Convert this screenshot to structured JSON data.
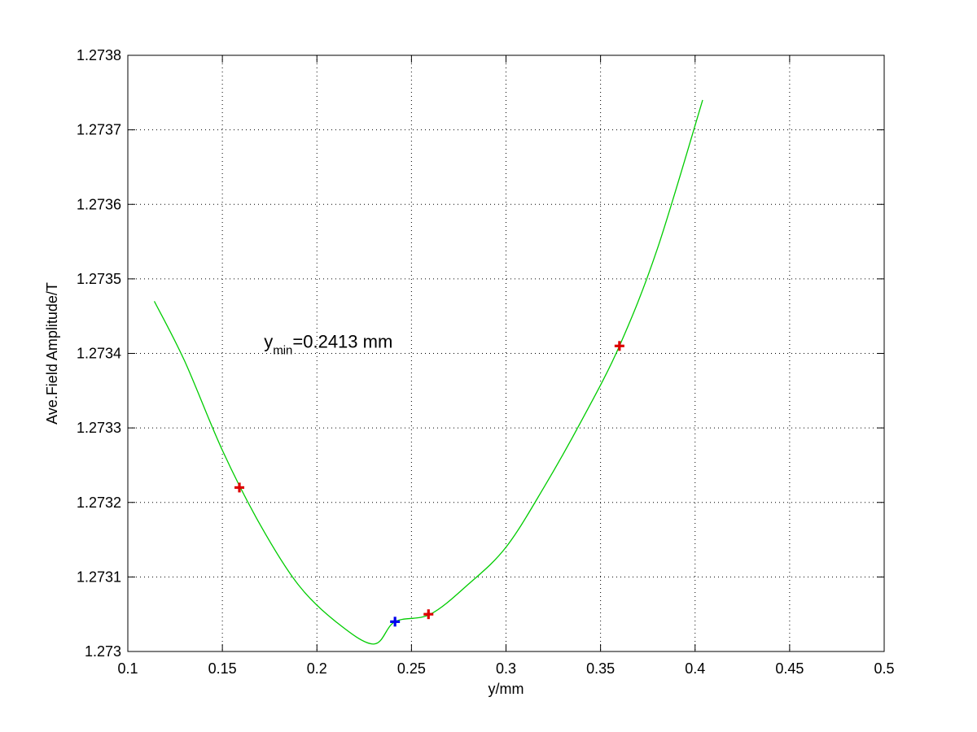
{
  "chart_data": {
    "type": "scatter",
    "title": "",
    "xlabel": "y/mm",
    "ylabel": "Ave.Field Amplitude/T",
    "xlim": [
      0.1,
      0.5
    ],
    "ylim": [
      1.273,
      1.2738
    ],
    "grid": true,
    "x_ticks": [
      0.1,
      0.15,
      0.2,
      0.25,
      0.3,
      0.35,
      0.4,
      0.45,
      0.5
    ],
    "x_tick_labels": [
      "0.1",
      "0.15",
      "0.2",
      "0.25",
      "0.3",
      "0.35",
      "0.4",
      "0.45",
      "0.5"
    ],
    "y_ticks": [
      1.273,
      1.2731,
      1.2732,
      1.2733,
      1.2734,
      1.2735,
      1.2736,
      1.2737,
      1.2738
    ],
    "y_tick_labels": [
      "1.273",
      "1.2731",
      "1.2732",
      "1.2733",
      "1.2734",
      "1.2735",
      "1.2736",
      "1.2737",
      "1.2738"
    ],
    "series": [
      {
        "kind": "fit-curve",
        "color": "#00cc00",
        "x": [
          0.114,
          0.13,
          0.15,
          0.17,
          0.19,
          0.21,
          0.23,
          0.2413,
          0.26,
          0.28,
          0.3,
          0.32,
          0.34,
          0.36,
          0.38,
          0.404
        ],
        "y": [
          1.27347,
          1.27339,
          1.27327,
          1.27317,
          1.27309,
          1.27304,
          1.27301,
          1.27304,
          1.27305,
          1.27309,
          1.27314,
          1.27322,
          1.27331,
          1.27341,
          1.27354,
          1.27374
        ]
      },
      {
        "kind": "samples",
        "color": "#dd0000",
        "marker": "plus",
        "x": [
          0.159,
          0.259,
          0.36
        ],
        "y": [
          1.27322,
          1.27305,
          1.27341
        ]
      },
      {
        "kind": "minimum",
        "color": "#0000ee",
        "marker": "plus",
        "x": [
          0.2413
        ],
        "y": [
          1.27304
        ]
      }
    ],
    "annotation": {
      "base": "y",
      "sub": "min",
      "rest": "=0.2413 mm",
      "x": 0.172,
      "y": 1.27341
    }
  }
}
